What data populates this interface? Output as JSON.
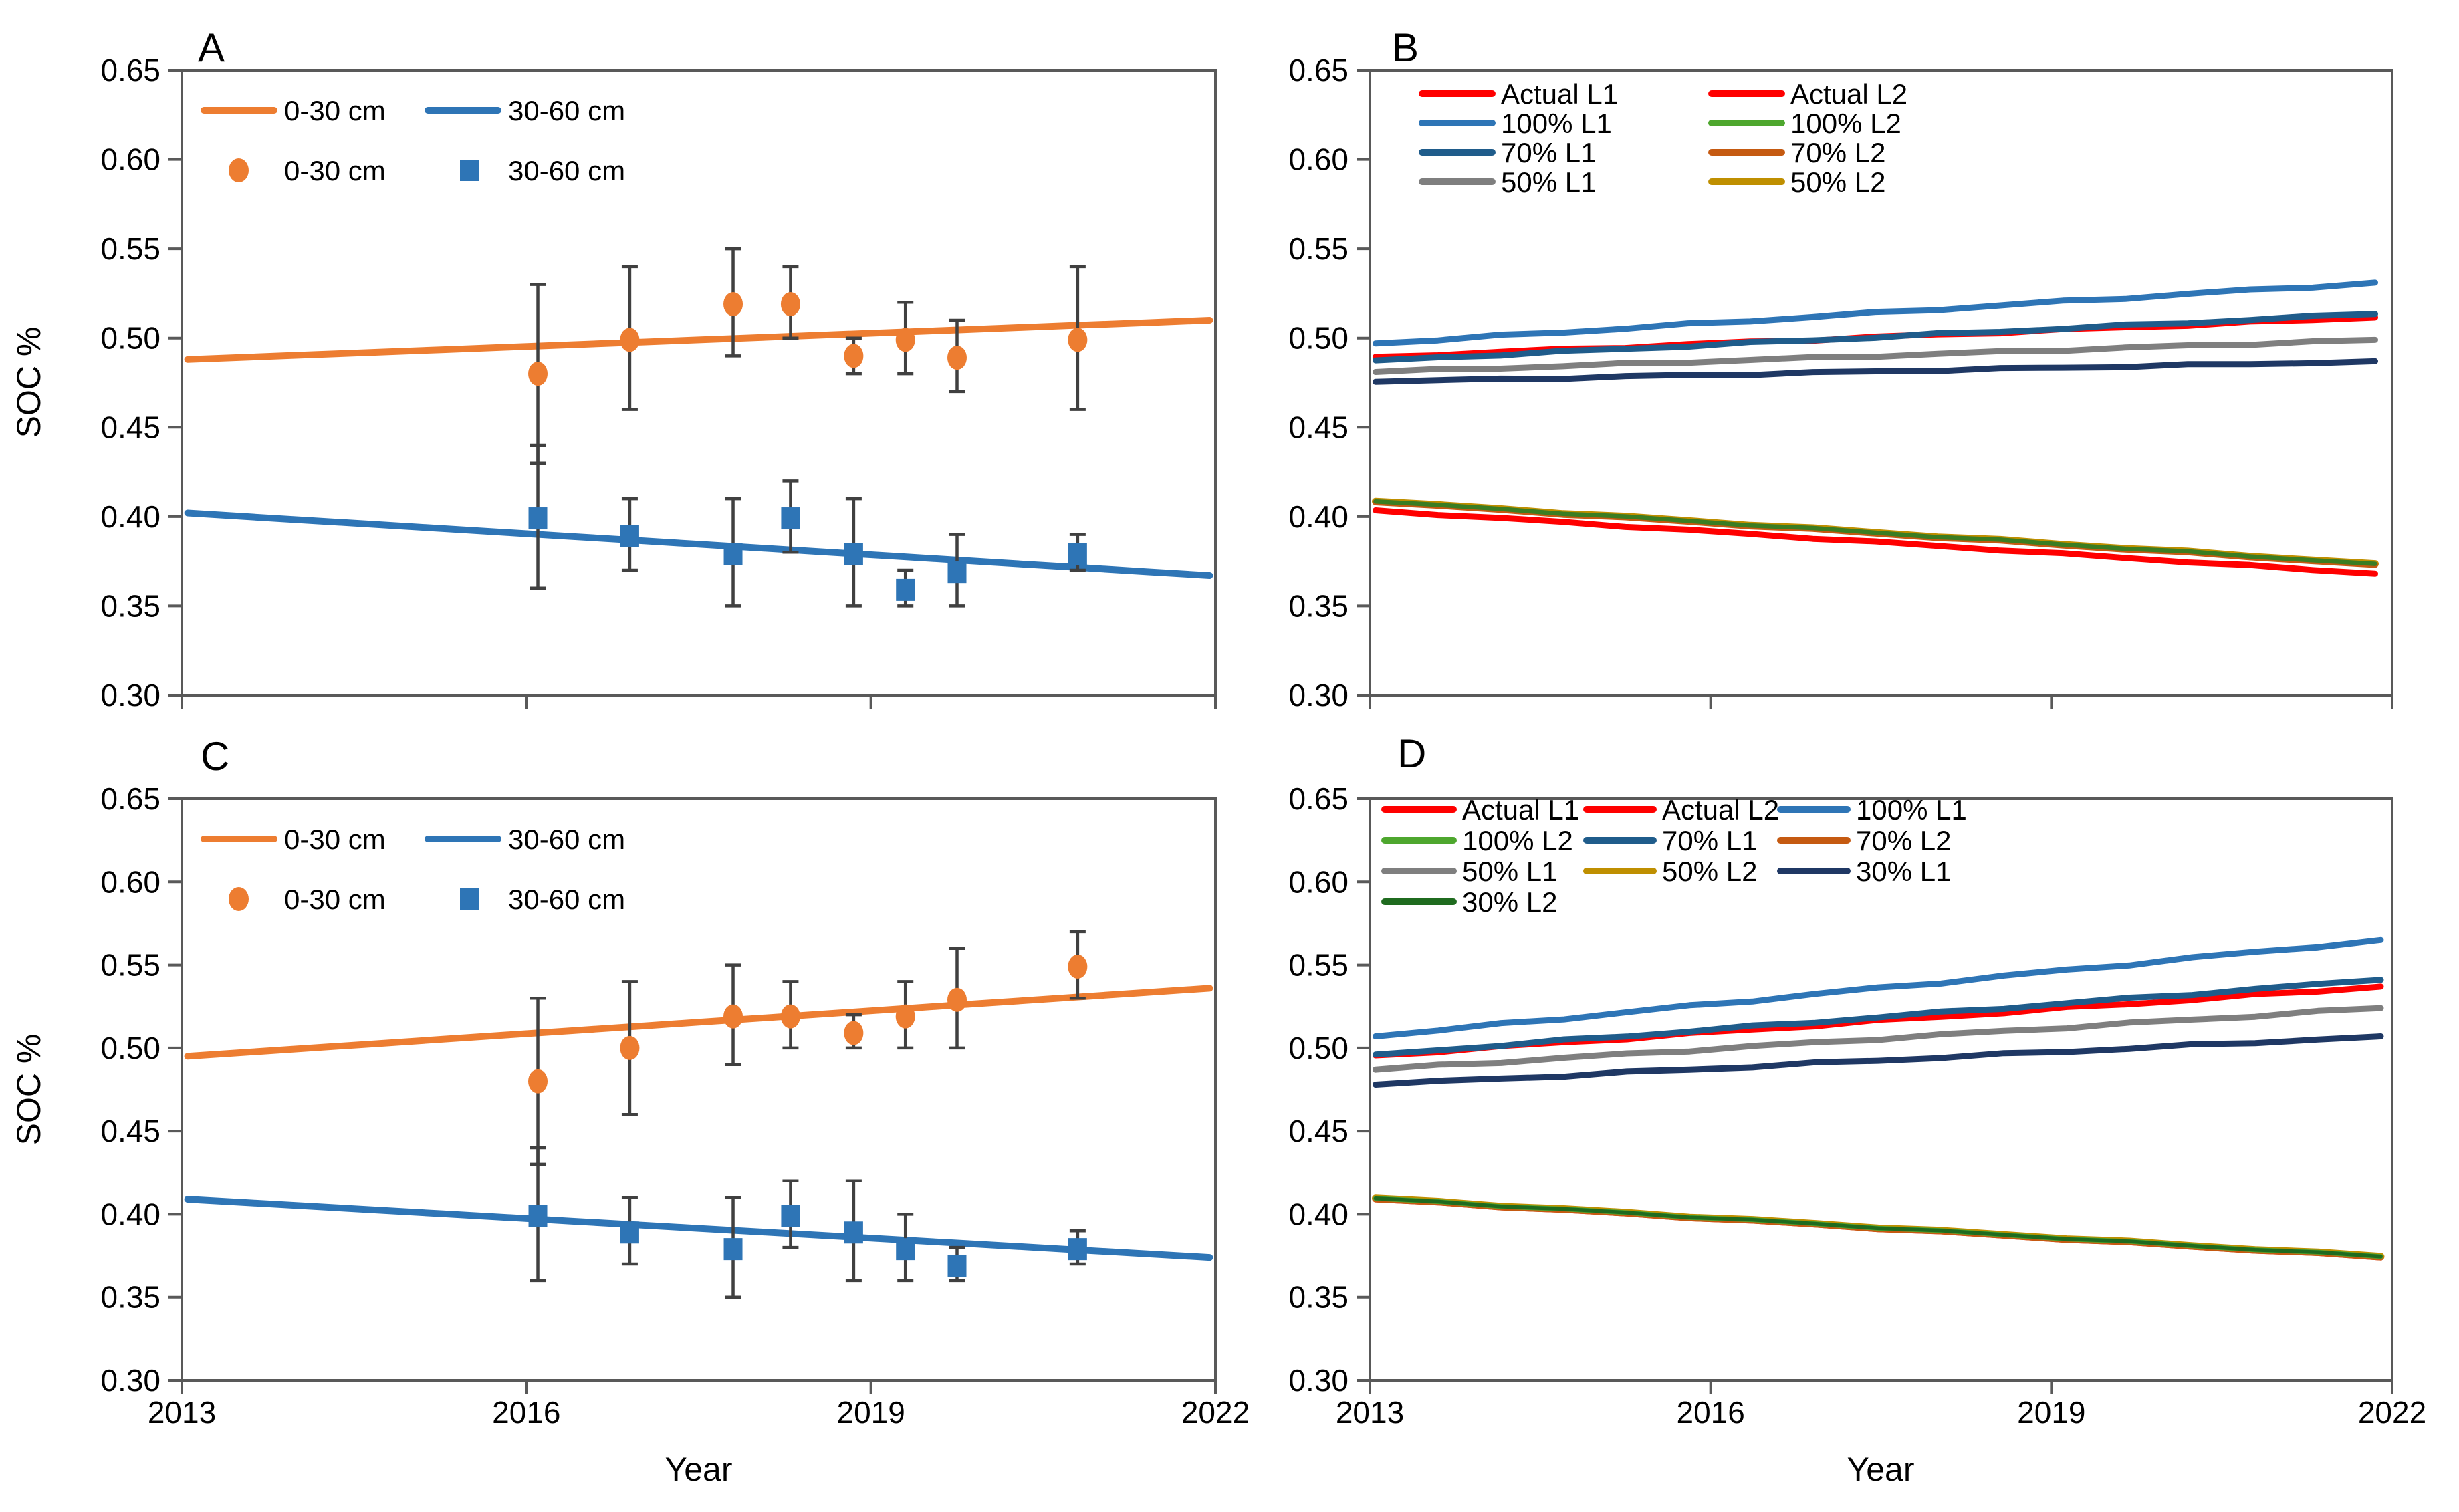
{
  "figure": {
    "x_axis_title": "Year",
    "background": "#FFFFFF",
    "axis_color": "#595959",
    "error_bar_color": "#404040",
    "text_color": "#000000"
  },
  "chart_data": [
    {
      "panel": "A",
      "type": "line+scatter",
      "x_range": [
        2013,
        2022
      ],
      "y_range": [
        0.3,
        0.65
      ],
      "x_ticks": [
        2013,
        2016,
        2019,
        2022
      ],
      "show_x_tick_labels": false,
      "y_ticks": [
        0.65,
        0.6,
        0.55,
        0.5,
        0.45,
        0.4,
        0.35,
        0.3
      ],
      "y_axis_label": "SOC %",
      "legend": {
        "style": "ac",
        "entries": [
          {
            "label": "0-30 cm",
            "swatch": "line",
            "color": "#ED7D31"
          },
          {
            "label": "30-60 cm",
            "swatch": "line",
            "color": "#2E75B6"
          },
          {
            "label": "0-30 cm",
            "swatch": "circle",
            "color": "#ED7D31"
          },
          {
            "label": "30-60 cm",
            "swatch": "square",
            "color": "#2E75B6"
          }
        ]
      },
      "lines": [
        {
          "name": "0-30 cm modeled",
          "color": "#ED7D31",
          "width": 10,
          "x": [
            2013.05,
            2021.95
          ],
          "y": [
            0.488,
            0.51
          ],
          "jitter": 0,
          "seed": 0
        },
        {
          "name": "30-60 cm modeled",
          "color": "#2E75B6",
          "width": 10,
          "x": [
            2013.05,
            2021.95
          ],
          "y": [
            0.402,
            0.367
          ],
          "jitter": 0,
          "seed": 0
        }
      ],
      "scatter": [
        {
          "name": "0-30 cm observed",
          "marker": "circle",
          "color": "#ED7D31",
          "points": [
            [
              2016.1,
              0.48,
              0.43,
              0.53
            ],
            [
              2016.9,
              0.499,
              0.46,
              0.54
            ],
            [
              2017.8,
              0.519,
              0.49,
              0.55
            ],
            [
              2018.3,
              0.519,
              0.5,
              0.54
            ],
            [
              2018.85,
              0.49,
              0.48,
              0.5
            ],
            [
              2019.3,
              0.499,
              0.48,
              0.52
            ],
            [
              2019.75,
              0.489,
              0.47,
              0.51
            ],
            [
              2020.8,
              0.499,
              0.46,
              0.54
            ]
          ]
        },
        {
          "name": "30-60 cm observed",
          "marker": "square",
          "color": "#2E75B6",
          "points": [
            [
              2016.1,
              0.399,
              0.36,
              0.44
            ],
            [
              2016.9,
              0.389,
              0.37,
              0.41
            ],
            [
              2017.8,
              0.379,
              0.35,
              0.41
            ],
            [
              2018.3,
              0.399,
              0.38,
              0.42
            ],
            [
              2018.85,
              0.379,
              0.35,
              0.41
            ],
            [
              2019.3,
              0.359,
              0.35,
              0.37
            ],
            [
              2019.75,
              0.369,
              0.35,
              0.39
            ],
            [
              2020.8,
              0.379,
              0.37,
              0.39
            ]
          ]
        }
      ]
    },
    {
      "panel": "B",
      "type": "line",
      "x_range": [
        2013,
        2022
      ],
      "y_range": [
        0.3,
        0.65
      ],
      "x_ticks": [
        2013,
        2016,
        2019,
        2022
      ],
      "show_x_tick_labels": false,
      "y_ticks": [
        0.65,
        0.6,
        0.55,
        0.5,
        0.45,
        0.4,
        0.35,
        0.3
      ],
      "y_axis_label": "",
      "legend": {
        "style": "grid2",
        "entries": [
          {
            "label": "Actual L1",
            "swatch": "line",
            "color": "#FF0000"
          },
          {
            "label": "100% L1",
            "swatch": "line",
            "color": "#2E75B6"
          },
          {
            "label": "70% L1",
            "swatch": "line",
            "color": "#1F5C8B"
          },
          {
            "label": "50% L1",
            "swatch": "line",
            "color": "#7F7F7F"
          },
          {
            "label": "Actual L2",
            "swatch": "line",
            "color": "#FF0000"
          },
          {
            "label": "100% L2",
            "swatch": "line",
            "color": "#4EA72E"
          },
          {
            "label": "70% L2",
            "swatch": "line",
            "color": "#C55A11"
          },
          {
            "label": "50% L2",
            "swatch": "line",
            "color": "#BF8F00"
          }
        ]
      },
      "lines": [
        {
          "name": "30% L1",
          "color": "#1F3864",
          "width": 9,
          "x": [
            2013.05,
            2021.85
          ],
          "y": [
            0.4755,
            0.487
          ],
          "jitter": 1.6,
          "seed": 1
        },
        {
          "name": "50% L1",
          "color": "#7F7F7F",
          "width": 9,
          "x": [
            2013.05,
            2021.85
          ],
          "y": [
            0.481,
            0.499
          ],
          "jitter": 1.6,
          "seed": 2
        },
        {
          "name": "Actual L1",
          "color": "#FF0000",
          "width": 9,
          "x": [
            2013.05,
            2021.85
          ],
          "y": [
            0.4895,
            0.5115
          ],
          "jitter": 1.6,
          "seed": 4
        },
        {
          "name": "70% L1",
          "color": "#1F5C8B",
          "width": 9,
          "x": [
            2013.05,
            2021.85
          ],
          "y": [
            0.4875,
            0.5135
          ],
          "jitter": 1.6,
          "seed": 3
        },
        {
          "name": "100% L1",
          "color": "#2E75B6",
          "width": 9,
          "x": [
            2013.05,
            2021.85
          ],
          "y": [
            0.497,
            0.531
          ],
          "jitter": 1.8,
          "seed": 5
        },
        {
          "name": "50% L2",
          "color": "#BF8F00",
          "width": 11,
          "x": [
            2013.05,
            2021.85
          ],
          "y": [
            0.4085,
            0.3735
          ],
          "jitter": 1.2,
          "seed": 6
        },
        {
          "name": "70% L2",
          "color": "#C55A11",
          "width": 9,
          "x": [
            2013.05,
            2021.85
          ],
          "y": [
            0.408,
            0.373
          ],
          "jitter": 1.2,
          "seed": 6
        },
        {
          "name": "100% L2",
          "color": "#3A7D22",
          "width": 6.5,
          "x": [
            2013.05,
            2021.85
          ],
          "y": [
            0.4085,
            0.3735
          ],
          "jitter": 1.2,
          "seed": 6
        },
        {
          "name": "Actual L2",
          "color": "#FF0000",
          "width": 9,
          "x": [
            2013.05,
            2021.85
          ],
          "y": [
            0.4035,
            0.368
          ],
          "jitter": 1.2,
          "seed": 9
        }
      ],
      "scatter": []
    },
    {
      "panel": "C",
      "type": "line+scatter",
      "x_range": [
        2013,
        2022
      ],
      "y_range": [
        0.3,
        0.65
      ],
      "x_ticks": [
        2013,
        2016,
        2019,
        2022
      ],
      "show_x_tick_labels": true,
      "y_ticks": [
        0.65,
        0.6,
        0.55,
        0.5,
        0.45,
        0.4,
        0.35,
        0.3
      ],
      "y_axis_label": "SOC %",
      "legend": {
        "style": "ac",
        "entries": [
          {
            "label": "0-30 cm",
            "swatch": "line",
            "color": "#ED7D31"
          },
          {
            "label": "30-60 cm",
            "swatch": "line",
            "color": "#2E75B6"
          },
          {
            "label": "0-30 cm",
            "swatch": "circle",
            "color": "#ED7D31"
          },
          {
            "label": "30-60 cm",
            "swatch": "square",
            "color": "#2E75B6"
          }
        ]
      },
      "lines": [
        {
          "name": "0-30 cm modeled",
          "color": "#ED7D31",
          "width": 10,
          "x": [
            2013.05,
            2021.95
          ],
          "y": [
            0.495,
            0.536
          ],
          "jitter": 0,
          "seed": 0
        },
        {
          "name": "30-60 cm modeled",
          "color": "#2E75B6",
          "width": 10,
          "x": [
            2013.05,
            2021.95
          ],
          "y": [
            0.409,
            0.374
          ],
          "jitter": 0,
          "seed": 0
        }
      ],
      "scatter": [
        {
          "name": "0-30 cm observed",
          "marker": "circle",
          "color": "#ED7D31",
          "points": [
            [
              2016.1,
              0.48,
              0.43,
              0.53
            ],
            [
              2016.9,
              0.5,
              0.46,
              0.54
            ],
            [
              2017.8,
              0.519,
              0.49,
              0.55
            ],
            [
              2018.3,
              0.519,
              0.5,
              0.54
            ],
            [
              2018.85,
              0.509,
              0.5,
              0.52
            ],
            [
              2019.3,
              0.519,
              0.5,
              0.54
            ],
            [
              2019.75,
              0.529,
              0.5,
              0.56
            ],
            [
              2020.8,
              0.549,
              0.53,
              0.57
            ]
          ]
        },
        {
          "name": "30-60 cm observed",
          "marker": "square",
          "color": "#2E75B6",
          "points": [
            [
              2016.1,
              0.399,
              0.36,
              0.44
            ],
            [
              2016.9,
              0.389,
              0.37,
              0.41
            ],
            [
              2017.8,
              0.379,
              0.35,
              0.41
            ],
            [
              2018.3,
              0.399,
              0.38,
              0.42
            ],
            [
              2018.85,
              0.389,
              0.36,
              0.42
            ],
            [
              2019.3,
              0.379,
              0.36,
              0.4
            ],
            [
              2019.75,
              0.369,
              0.36,
              0.38
            ],
            [
              2020.8,
              0.379,
              0.37,
              0.39
            ]
          ]
        }
      ]
    },
    {
      "panel": "D",
      "type": "line",
      "x_range": [
        2013,
        2022
      ],
      "y_range": [
        0.3,
        0.65
      ],
      "x_ticks": [
        2013,
        2016,
        2019,
        2022
      ],
      "show_x_tick_labels": true,
      "y_ticks": [
        0.65,
        0.6,
        0.55,
        0.5,
        0.45,
        0.4,
        0.35,
        0.3
      ],
      "y_axis_label": "",
      "legend": {
        "style": "grid3",
        "entries": [
          {
            "label": "Actual L1",
            "swatch": "line",
            "color": "#FF0000"
          },
          {
            "label": "Actual L2",
            "swatch": "line",
            "color": "#FF0000"
          },
          {
            "label": "100% L1",
            "swatch": "line",
            "color": "#2E75B6"
          },
          {
            "label": "100% L2",
            "swatch": "line",
            "color": "#4EA72E"
          },
          {
            "label": "70% L1",
            "swatch": "line",
            "color": "#1F5C8B"
          },
          {
            "label": "70% L2",
            "swatch": "line",
            "color": "#C55A11"
          },
          {
            "label": "50% L1",
            "swatch": "line",
            "color": "#7F7F7F"
          },
          {
            "label": "50% L2",
            "swatch": "line",
            "color": "#BF8F00"
          },
          {
            "label": "30% L1",
            "swatch": "line",
            "color": "#1F3864"
          },
          {
            "label": "30% L2",
            "swatch": "line",
            "color": "#1F6B1F"
          }
        ]
      },
      "lines": [
        {
          "name": "30% L1",
          "color": "#1F3864",
          "width": 9,
          "x": [
            2013.05,
            2021.9
          ],
          "y": [
            0.478,
            0.507
          ],
          "jitter": 1.8,
          "seed": 11
        },
        {
          "name": "50% L1",
          "color": "#7F7F7F",
          "width": 9,
          "x": [
            2013.05,
            2021.9
          ],
          "y": [
            0.487,
            0.524
          ],
          "jitter": 1.8,
          "seed": 12
        },
        {
          "name": "Actual L1",
          "color": "#FF0000",
          "width": 9,
          "x": [
            2013.05,
            2021.9
          ],
          "y": [
            0.4955,
            0.537
          ],
          "jitter": 1.8,
          "seed": 14
        },
        {
          "name": "70% L1",
          "color": "#1F5C8B",
          "width": 9,
          "x": [
            2013.05,
            2021.9
          ],
          "y": [
            0.496,
            0.541
          ],
          "jitter": 1.8,
          "seed": 13
        },
        {
          "name": "100% L1",
          "color": "#2E75B6",
          "width": 9,
          "x": [
            2013.05,
            2021.9
          ],
          "y": [
            0.507,
            0.565
          ],
          "jitter": 2.0,
          "seed": 15
        },
        {
          "name": "Actual L2",
          "color": "#FF0000",
          "width": 9,
          "x": [
            2013.05,
            2021.9
          ],
          "y": [
            0.409,
            0.374
          ],
          "jitter": 1.2,
          "seed": 17
        },
        {
          "name": "50% L2",
          "color": "#BF8F00",
          "width": 11,
          "x": [
            2013.05,
            2021.9
          ],
          "y": [
            0.4095,
            0.3745
          ],
          "jitter": 1.2,
          "seed": 17
        },
        {
          "name": "70% L2",
          "color": "#C55A11",
          "width": 9,
          "x": [
            2013.05,
            2021.9
          ],
          "y": [
            0.409,
            0.374
          ],
          "jitter": 1.2,
          "seed": 17
        },
        {
          "name": "100% L2",
          "color": "#4EA72E",
          "width": 7,
          "x": [
            2013.05,
            2021.9
          ],
          "y": [
            0.4095,
            0.3745
          ],
          "jitter": 1.2,
          "seed": 17
        },
        {
          "name": "30% L2",
          "color": "#1F6B1F",
          "width": 5.5,
          "x": [
            2013.05,
            2021.9
          ],
          "y": [
            0.4095,
            0.3745
          ],
          "jitter": 1.2,
          "seed": 17
        }
      ],
      "scatter": []
    }
  ]
}
